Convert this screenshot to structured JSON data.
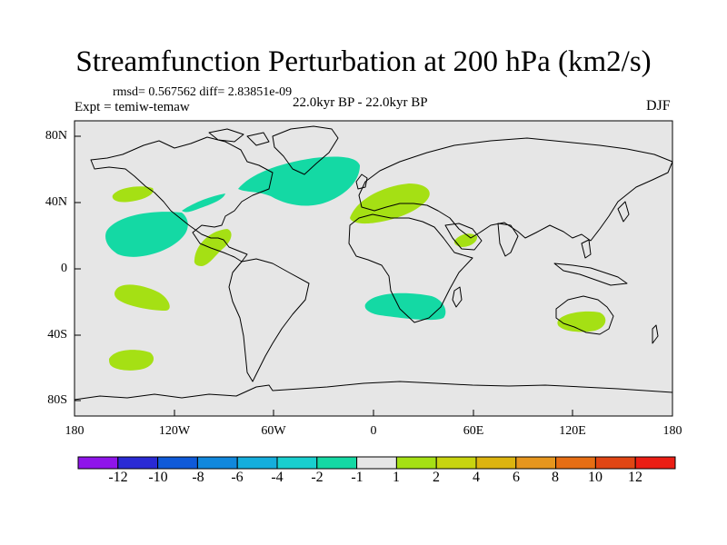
{
  "title": "Streamfunction Perturbation at 200 hPa (km2/s)",
  "stats_text": "rmsd= 0.567562 diff= 2.83851e-09",
  "experiment_text": "Expt = temiw-temaw",
  "period_text": "22.0kyr BP - 22.0kyr BP",
  "season_text": "DJF",
  "x_axis": {
    "tick_labels": [
      "180",
      "120W",
      "60W",
      "0",
      "60E",
      "120E",
      "180"
    ]
  },
  "y_axis": {
    "tick_labels": [
      "80N",
      "40N",
      "0",
      "40S",
      "80S"
    ]
  },
  "colorbar": {
    "colors": [
      "#8f14ea",
      "#2a2ad4",
      "#0f5ad9",
      "#1188dc",
      "#14aedc",
      "#18cfcf",
      "#14d9a4",
      "#e6e6e6",
      "#a5e014",
      "#c8d40f",
      "#dcb40f",
      "#e6961e",
      "#e66e14",
      "#e04614",
      "#eb1e14"
    ],
    "labels": [
      "-12",
      "-10",
      "-8",
      "-6",
      "-4",
      "-2",
      "-1",
      "1",
      "2",
      "4",
      "6",
      "8",
      "10",
      "12"
    ]
  },
  "colors": {
    "background": "#e6e6e6",
    "negative_fill": "#14d9a4",
    "positive_fill": "#a5e014",
    "coast": "#000000"
  }
}
